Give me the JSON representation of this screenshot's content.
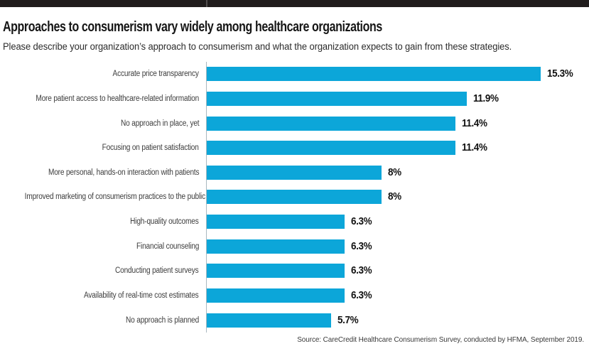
{
  "chart_data": {
    "type": "bar",
    "orientation": "horizontal",
    "title": "Approaches to consumerism vary widely among healthcare organizations",
    "subtitle": "Please describe your organization’s approach to consumerism and what the organization expects to gain from these strategies.",
    "categories": [
      "Accurate price transparency",
      "More patient access to healthcare-related information",
      "No approach in place, yet",
      "Focusing on patient satisfaction",
      "More personal, hands-on interaction with patients",
      "Improved marketing of consumerism practices to the public",
      "High-quality outcomes",
      "Financial counseling",
      "Conducting patient surveys",
      "Availability of real-time cost estimates",
      "No approach is planned"
    ],
    "values": [
      15.3,
      11.9,
      11.4,
      11.4,
      8,
      8,
      6.3,
      6.3,
      6.3,
      6.3,
      5.7
    ],
    "value_labels": [
      "15.3%",
      "11.9%",
      "11.4%",
      "11.4%",
      "8%",
      "8%",
      "6.3%",
      "6.3%",
      "6.3%",
      "6.3%",
      "5.7%"
    ],
    "unit": "%",
    "xlim": [
      0,
      16
    ],
    "grid": false,
    "legend": null,
    "value_label_position": "end-of-bar",
    "bar_color": "#0ca6d9",
    "axis_line_color": "#a9b8bf",
    "accent_bar_color": "#201c1c"
  },
  "footer": {
    "source": "Source: CareCredit Healthcare Consumerism Survey, conducted by HFMA, September 2019."
  }
}
